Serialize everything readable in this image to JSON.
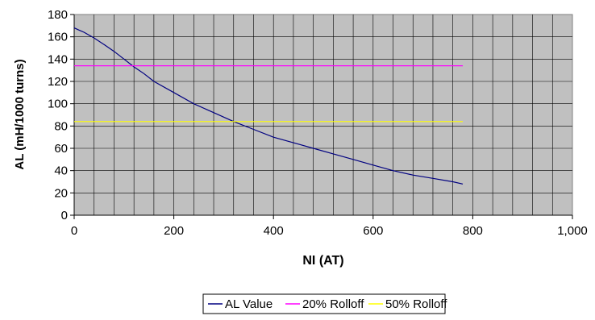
{
  "chart_data": {
    "type": "line",
    "xlabel": "NI (AT)",
    "ylabel": "AL (mH/1000 turns)",
    "xlim": [
      0,
      1000
    ],
    "ylim": [
      0,
      180
    ],
    "x_ticks": [
      "0",
      "200",
      "400",
      "600",
      "800",
      "1,000"
    ],
    "y_ticks": [
      "0",
      "20",
      "40",
      "60",
      "80",
      "100",
      "120",
      "140",
      "160",
      "180"
    ],
    "grid": true,
    "plot_background": "#c0c0c0",
    "legend_position": "bottom",
    "series": [
      {
        "name": "AL Value",
        "color": "#000080",
        "x": [
          0,
          10,
          20,
          40,
          60,
          80,
          100,
          120,
          140,
          160,
          200,
          240,
          280,
          320,
          360,
          400,
          440,
          480,
          520,
          560,
          600,
          640,
          680,
          720,
          760,
          780
        ],
        "y": [
          168,
          166,
          164,
          159,
          153,
          147,
          140,
          133,
          127,
          120,
          110,
          100,
          92,
          84,
          77,
          70,
          65,
          60,
          55,
          50,
          45,
          40,
          36,
          33,
          30,
          28
        ]
      },
      {
        "name": "20% Rolloff",
        "color": "#ff00ff",
        "x": [
          0,
          780
        ],
        "y": [
          134,
          134
        ]
      },
      {
        "name": "50% Rolloff",
        "color": "#ffff00",
        "x": [
          0,
          780
        ],
        "y": [
          84,
          84
        ]
      }
    ]
  }
}
